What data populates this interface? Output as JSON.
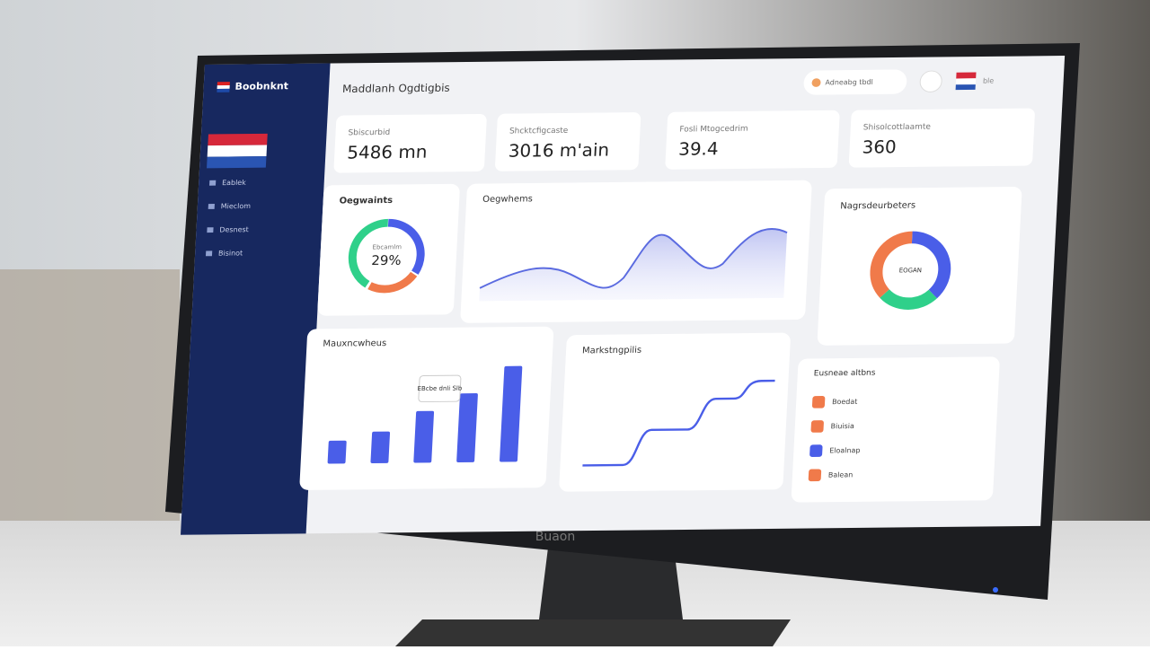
{
  "sidebar": {
    "brand": "Boobnknt",
    "menu": [
      "Eablek",
      "Mieclom",
      "Desnest",
      "Bisinot"
    ]
  },
  "header": {
    "title": "Maddlanh Ogdtigbis",
    "search": "Adneabg tbdl",
    "lang": "ble"
  },
  "stats": [
    {
      "label": "Sbiscurbid",
      "value": "5486 mn"
    },
    {
      "label": "Shcktcfigcaste",
      "value": "3016 m'ain"
    },
    {
      "label": "Fosli Mtogcedrim",
      "value": "39.4"
    },
    {
      "label": "Shisolcottlaamte",
      "value": "360"
    }
  ],
  "panels": {
    "donut": {
      "title": "Oegwaints",
      "center_label": "Ebcamlm",
      "center_value": "29%"
    },
    "area": {
      "title": "Oegwhems"
    },
    "donut2": {
      "title": "Nagrsdeurbeters",
      "center_label": "EOGAN"
    },
    "bar": {
      "title": "Mauxncwheus",
      "tooltip": "EBcbe dnli Slb",
      "values": [
        24,
        33,
        54,
        72,
        100
      ]
    },
    "steps": {
      "title": "Markstngpilis"
    },
    "list": {
      "title": "Eusneae altbns",
      "items": [
        "Boedat",
        "Biuisia",
        "Eloalnap",
        "Balean"
      ]
    }
  },
  "bezel": {
    "brand": "Buaon"
  }
}
